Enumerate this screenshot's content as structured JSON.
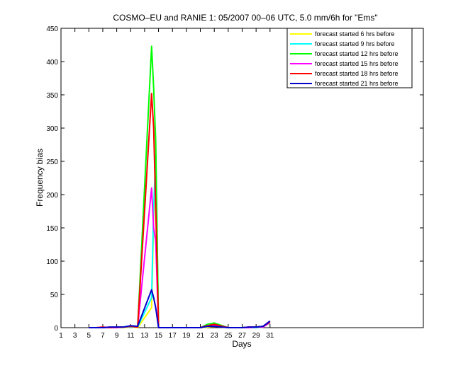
{
  "chart_data": {
    "type": "line",
    "title": "COSMO–EU and RANIE 1: 05/2007 00–06 UTC, 5.0 mm/6h for \"Ems\"",
    "xlabel": "Days",
    "ylabel": "Frequency bias",
    "xlim": [
      1,
      53
    ],
    "ylim": [
      0,
      450
    ],
    "x_ticks": [
      1,
      3,
      5,
      7,
      9,
      11,
      13,
      15,
      17,
      19,
      21,
      23,
      25,
      27,
      29,
      31
    ],
    "y_ticks": [
      0,
      50,
      100,
      150,
      200,
      250,
      300,
      350,
      400,
      450
    ],
    "legend_position": "top-right",
    "series": [
      {
        "name": "forecast started 6 hrs before",
        "color": "#ffff00",
        "points": [
          [
            5,
            0
          ],
          [
            6,
            0
          ],
          [
            7,
            0
          ],
          [
            8,
            0
          ],
          [
            9,
            0
          ],
          [
            10,
            0
          ],
          [
            11,
            1
          ],
          [
            12,
            0
          ],
          [
            14,
            30
          ],
          [
            14.3,
            160
          ],
          [
            14.6,
            240
          ],
          [
            15,
            0
          ],
          [
            16,
            0
          ],
          [
            17,
            0
          ],
          [
            19,
            0
          ],
          [
            21,
            0
          ],
          [
            22,
            1
          ],
          [
            23,
            2
          ],
          [
            25,
            0
          ],
          [
            27,
            0
          ],
          [
            28,
            0
          ],
          [
            29,
            0
          ],
          [
            30,
            1
          ],
          [
            31,
            9
          ]
        ]
      },
      {
        "name": "forecast started 9 hrs before",
        "color": "#00ffff",
        "points": [
          [
            5,
            0
          ],
          [
            6,
            0
          ],
          [
            7,
            0
          ],
          [
            8,
            0
          ],
          [
            9,
            0
          ],
          [
            10,
            1
          ],
          [
            11,
            1
          ],
          [
            12,
            1
          ],
          [
            14,
            45
          ],
          [
            14.3,
            180
          ],
          [
            14.6,
            260
          ],
          [
            15,
            0
          ],
          [
            16,
            0
          ],
          [
            17,
            0
          ],
          [
            19,
            0
          ],
          [
            21,
            0
          ],
          [
            22,
            2
          ],
          [
            23,
            3
          ],
          [
            25,
            0
          ],
          [
            27,
            0
          ],
          [
            28,
            0
          ],
          [
            29,
            0
          ],
          [
            30,
            1
          ],
          [
            31,
            8
          ]
        ]
      },
      {
        "name": "forecast started 12 hrs before",
        "color": "#00ff00",
        "points": [
          [
            5,
            0
          ],
          [
            6,
            0
          ],
          [
            7,
            0
          ],
          [
            8,
            0
          ],
          [
            9,
            1
          ],
          [
            10,
            1
          ],
          [
            11,
            2
          ],
          [
            12,
            1
          ],
          [
            14,
            423
          ],
          [
            14.3,
            360
          ],
          [
            14.6,
            280
          ],
          [
            15,
            0
          ],
          [
            16,
            0
          ],
          [
            17,
            0
          ],
          [
            19,
            0
          ],
          [
            21,
            0
          ],
          [
            22,
            5
          ],
          [
            23,
            7
          ],
          [
            25,
            0
          ],
          [
            27,
            0
          ],
          [
            28,
            1
          ],
          [
            29,
            1
          ],
          [
            30,
            2
          ],
          [
            31,
            7
          ]
        ]
      },
      {
        "name": "forecast started 15 hrs before",
        "color": "#ff00ff",
        "points": [
          [
            5,
            0
          ],
          [
            6,
            0
          ],
          [
            7,
            0
          ],
          [
            8,
            0
          ],
          [
            9,
            0
          ],
          [
            10,
            1
          ],
          [
            11,
            2
          ],
          [
            12,
            1
          ],
          [
            14,
            210
          ],
          [
            14.3,
            150
          ],
          [
            14.6,
            130
          ],
          [
            15,
            0
          ],
          [
            16,
            0
          ],
          [
            17,
            0
          ],
          [
            19,
            0
          ],
          [
            21,
            0
          ],
          [
            22,
            3
          ],
          [
            23,
            4
          ],
          [
            25,
            0
          ],
          [
            27,
            0
          ],
          [
            28,
            0
          ],
          [
            29,
            1
          ],
          [
            30,
            1
          ],
          [
            31,
            8
          ]
        ]
      },
      {
        "name": "forecast started 18 hrs before",
        "color": "#ff0000",
        "points": [
          [
            5,
            0
          ],
          [
            6,
            0
          ],
          [
            7,
            1
          ],
          [
            8,
            0
          ],
          [
            9,
            1
          ],
          [
            10,
            1
          ],
          [
            11,
            2
          ],
          [
            12,
            1
          ],
          [
            14,
            352
          ],
          [
            14.3,
            300
          ],
          [
            14.6,
            180
          ],
          [
            15,
            0
          ],
          [
            16,
            0
          ],
          [
            17,
            0
          ],
          [
            19,
            0
          ],
          [
            21,
            0
          ],
          [
            22,
            3
          ],
          [
            23,
            5
          ],
          [
            25,
            0
          ],
          [
            27,
            0
          ],
          [
            28,
            1
          ],
          [
            29,
            1
          ],
          [
            30,
            2
          ],
          [
            31,
            9
          ]
        ]
      },
      {
        "name": "forecast started 21 hrs before",
        "color": "#0000cc",
        "points": [
          [
            5,
            0
          ],
          [
            6,
            0
          ],
          [
            7,
            0
          ],
          [
            8,
            1
          ],
          [
            9,
            1
          ],
          [
            10,
            1
          ],
          [
            11,
            3
          ],
          [
            12,
            2
          ],
          [
            14,
            57
          ],
          [
            14.3,
            45
          ],
          [
            14.6,
            30
          ],
          [
            15,
            0
          ],
          [
            16,
            0
          ],
          [
            17,
            0
          ],
          [
            19,
            0
          ],
          [
            21,
            0
          ],
          [
            22,
            2
          ],
          [
            23,
            2
          ],
          [
            25,
            0
          ],
          [
            27,
            0
          ],
          [
            28,
            1
          ],
          [
            29,
            1
          ],
          [
            30,
            2
          ],
          [
            31,
            10
          ]
        ]
      }
    ]
  }
}
